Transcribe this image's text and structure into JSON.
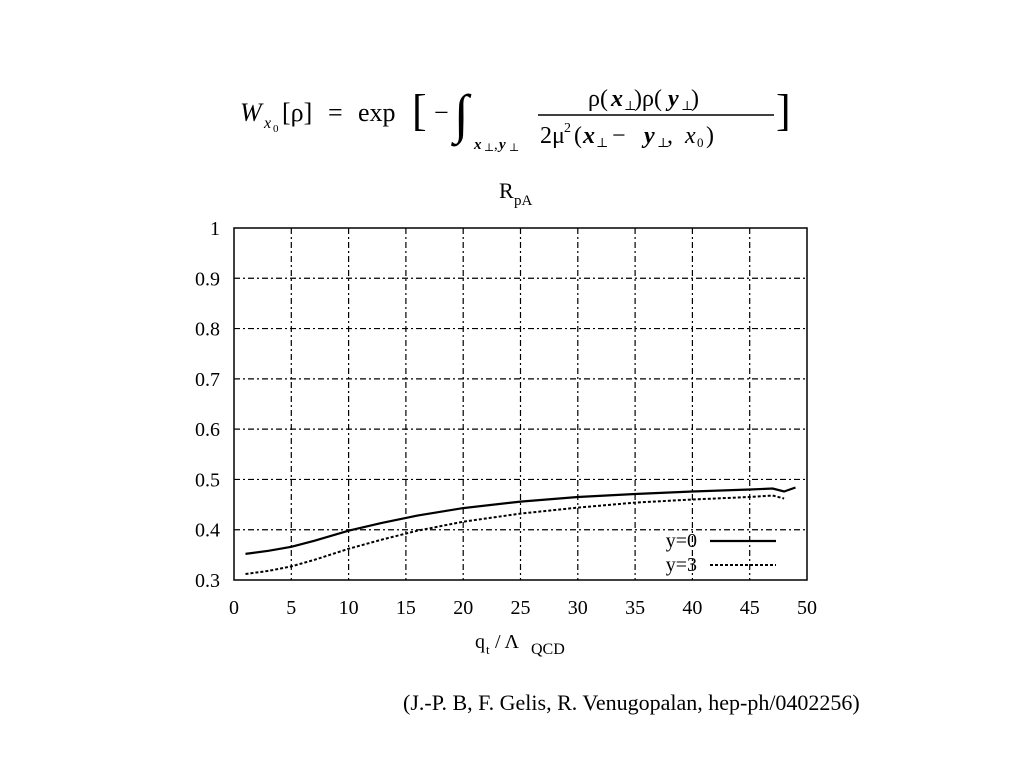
{
  "formula": {
    "lhs_W": "W",
    "lhs_sub_x": "x",
    "lhs_sub_0": "0",
    "lhs_arg": "[ρ]",
    "equals": "=",
    "exp": "exp",
    "lbracket": "[",
    "minus": "−",
    "integral": "∫",
    "int_sub_x": "x",
    "int_sub_perp1": "⊥",
    "int_sub_comma": ",",
    "int_sub_y": "y",
    "int_sub_perp2": "⊥",
    "num_rho1": "ρ(",
    "num_x": "x",
    "num_perp1": "⊥",
    "num_mid": ")ρ(",
    "num_y": "y",
    "num_perp2": "⊥",
    "num_close": ")",
    "den_2mu": "2μ",
    "den_sq": "2",
    "den_open": "(",
    "den_x": "x",
    "den_perp1": "⊥",
    "den_minus": " − ",
    "den_y": "y",
    "den_perp2": "⊥",
    "den_comma": ", ",
    "den_x0": "x",
    "den_sub0": "0",
    "den_close": ")",
    "rbracket": "]"
  },
  "chart_data": {
    "type": "line",
    "title": "R",
    "title_sub": "pA",
    "xlabel": "q",
    "xlabel_sub_t": "t",
    "xlabel_mid": " / Λ",
    "xlabel_sub_qcd": "QCD",
    "xlim": [
      0,
      50
    ],
    "ylim": [
      0.3,
      1.0
    ],
    "xticks": [
      "0",
      "5",
      "10",
      "15",
      "20",
      "25",
      "30",
      "35",
      "40",
      "45",
      "50"
    ],
    "yticks": [
      "0.3",
      "0.4",
      "0.5",
      "0.6",
      "0.7",
      "0.8",
      "0.9",
      "1"
    ],
    "grid": true,
    "legend_position": "bottom-right",
    "series": [
      {
        "name": "y=0",
        "style": "solid",
        "x": [
          1,
          3,
          5,
          7,
          10,
          13,
          16,
          20,
          25,
          30,
          35,
          40,
          45,
          47,
          48,
          49
        ],
        "y": [
          0.352,
          0.358,
          0.366,
          0.378,
          0.398,
          0.414,
          0.428,
          0.443,
          0.456,
          0.465,
          0.471,
          0.476,
          0.48,
          0.482,
          0.476,
          0.484
        ]
      },
      {
        "name": "y=3",
        "style": "dotted",
        "x": [
          1,
          3,
          5,
          7,
          10,
          13,
          16,
          20,
          25,
          30,
          35,
          40,
          45,
          47,
          48
        ],
        "y": [
          0.312,
          0.318,
          0.327,
          0.34,
          0.362,
          0.381,
          0.398,
          0.416,
          0.432,
          0.444,
          0.454,
          0.46,
          0.465,
          0.468,
          0.462
        ]
      }
    ]
  },
  "citation": "(J.-P. B, F. Gelis, R. Venugopalan, hep-ph/0402256)"
}
